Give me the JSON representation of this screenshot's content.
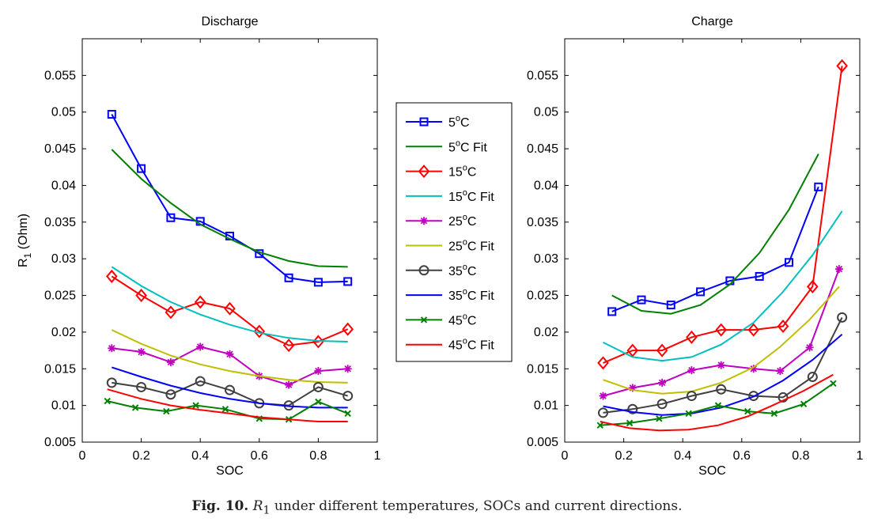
{
  "caption": {
    "label": "Fig. 10.",
    "symbol": "R",
    "subscript": "1",
    "text": " under different temperatures, SOCs and current directions."
  },
  "legend": {
    "position": "between-panels",
    "entries": [
      {
        "label": "5",
        "sup": "o",
        "unit": "C",
        "suffix": "",
        "color": "#0000ff",
        "marker": "square"
      },
      {
        "label": "5",
        "sup": "o",
        "unit": "C",
        "suffix": " Fit",
        "color": "#008000",
        "marker": "none"
      },
      {
        "label": "15",
        "sup": "o",
        "unit": "C",
        "suffix": "",
        "color": "#ff0000",
        "marker": "diamond"
      },
      {
        "label": "15",
        "sup": "o",
        "unit": "C",
        "suffix": " Fit",
        "color": "#00bfbf",
        "marker": "none"
      },
      {
        "label": "25",
        "sup": "o",
        "unit": "C",
        "suffix": "",
        "color": "#bf00bf",
        "marker": "star"
      },
      {
        "label": "25",
        "sup": "o",
        "unit": "C",
        "suffix": " Fit",
        "color": "#bfbf00",
        "marker": "none"
      },
      {
        "label": "35",
        "sup": "o",
        "unit": "C",
        "suffix": "",
        "color": "#404040",
        "marker": "circle"
      },
      {
        "label": "35",
        "sup": "o",
        "unit": "C",
        "suffix": " Fit",
        "color": "#0000ff",
        "marker": "none"
      },
      {
        "label": "45",
        "sup": "o",
        "unit": "C",
        "suffix": "",
        "color": "#008000",
        "marker": "x"
      },
      {
        "label": "45",
        "sup": "o",
        "unit": "C",
        "suffix": " Fit",
        "color": "#ff0000",
        "marker": "none"
      }
    ]
  },
  "chart_data": [
    {
      "type": "line",
      "title": "Discharge",
      "xlabel": "SOC",
      "ylabel": "R",
      "ylabel_sub": "1",
      "ylabel_unit": " (Ohm)",
      "xlim": [
        0,
        1
      ],
      "ylim": [
        0.005,
        0.06
      ],
      "xticks": [
        "0",
        "0.2",
        "0.4",
        "0.6",
        "0.8",
        "1"
      ],
      "yticks": [
        "0.005",
        "0.01",
        "0.015",
        "0.02",
        "0.025",
        "0.03",
        "0.035",
        "0.04",
        "0.045",
        "0.05",
        "0.055"
      ],
      "series": [
        {
          "name": "5oC",
          "color": "#0000ff",
          "marker": "square",
          "x": [
            0.1,
            0.2,
            0.3,
            0.4,
            0.5,
            0.6,
            0.7,
            0.8,
            0.9
          ],
          "y": [
            0.0497,
            0.0423,
            0.0356,
            0.0351,
            0.0331,
            0.0307,
            0.0274,
            0.0268,
            0.0269
          ]
        },
        {
          "name": "5oC Fit",
          "color": "#008000",
          "marker": "none",
          "x": [
            0.1,
            0.2,
            0.3,
            0.4,
            0.5,
            0.6,
            0.7,
            0.8,
            0.9
          ],
          "y": [
            0.0449,
            0.0409,
            0.0376,
            0.0347,
            0.0327,
            0.0309,
            0.0297,
            0.029,
            0.0289
          ]
        },
        {
          "name": "15oC",
          "color": "#ff0000",
          "marker": "diamond",
          "x": [
            0.1,
            0.2,
            0.3,
            0.4,
            0.5,
            0.6,
            0.7,
            0.8,
            0.9
          ],
          "y": [
            0.0276,
            0.025,
            0.0227,
            0.0241,
            0.0232,
            0.0201,
            0.0182,
            0.0187,
            0.0204
          ]
        },
        {
          "name": "15oC Fit",
          "color": "#00bfbf",
          "marker": "none",
          "x": [
            0.1,
            0.2,
            0.3,
            0.4,
            0.5,
            0.6,
            0.7,
            0.8,
            0.9
          ],
          "y": [
            0.0289,
            0.0263,
            0.0241,
            0.0224,
            0.021,
            0.0199,
            0.0192,
            0.0188,
            0.0187
          ]
        },
        {
          "name": "25oC",
          "color": "#bf00bf",
          "marker": "star",
          "x": [
            0.1,
            0.2,
            0.3,
            0.4,
            0.5,
            0.6,
            0.7,
            0.8,
            0.9
          ],
          "y": [
            0.0178,
            0.0173,
            0.0159,
            0.018,
            0.017,
            0.014,
            0.0128,
            0.0147,
            0.015
          ]
        },
        {
          "name": "25oC Fit",
          "color": "#bfbf00",
          "marker": "none",
          "x": [
            0.1,
            0.2,
            0.3,
            0.4,
            0.5,
            0.6,
            0.7,
            0.8,
            0.9
          ],
          "y": [
            0.0203,
            0.0184,
            0.0168,
            0.0156,
            0.0147,
            0.014,
            0.0135,
            0.0132,
            0.0131
          ]
        },
        {
          "name": "35oC",
          "color": "#404040",
          "marker": "circle",
          "x": [
            0.1,
            0.2,
            0.3,
            0.4,
            0.5,
            0.6,
            0.7,
            0.8,
            0.9
          ],
          "y": [
            0.0131,
            0.0125,
            0.0115,
            0.0133,
            0.0121,
            0.0103,
            0.01,
            0.0125,
            0.0113
          ]
        },
        {
          "name": "35oC Fit",
          "color": "#0000ff",
          "marker": "none",
          "x": [
            0.1,
            0.2,
            0.3,
            0.4,
            0.5,
            0.6,
            0.7,
            0.8,
            0.9
          ],
          "y": [
            0.0152,
            0.0139,
            0.0127,
            0.0117,
            0.0109,
            0.0103,
            0.0099,
            0.0097,
            0.0097
          ]
        },
        {
          "name": "45oC",
          "color": "#008000",
          "marker": "x",
          "x": [
            0.085,
            0.18,
            0.285,
            0.385,
            0.485,
            0.6,
            0.7,
            0.8,
            0.9
          ],
          "y": [
            0.0106,
            0.0097,
            0.0092,
            0.01,
            0.0095,
            0.0082,
            0.0081,
            0.0105,
            0.0089
          ]
        },
        {
          "name": "45oC Fit",
          "color": "#ff0000",
          "marker": "none",
          "x": [
            0.085,
            0.2,
            0.3,
            0.4,
            0.5,
            0.6,
            0.7,
            0.8,
            0.9
          ],
          "y": [
            0.0122,
            0.0109,
            0.01,
            0.0094,
            0.0089,
            0.0084,
            0.0081,
            0.0078,
            0.0078
          ]
        }
      ]
    },
    {
      "type": "line",
      "title": "Charge",
      "xlabel": "SOC",
      "ylabel": "",
      "xlim": [
        0,
        1
      ],
      "ylim": [
        0.005,
        0.06
      ],
      "xticks": [
        "0",
        "0.2",
        "0.4",
        "0.6",
        "0.8",
        "1"
      ],
      "yticks": [
        "0.005",
        "0.01",
        "0.015",
        "0.02",
        "0.025",
        "0.03",
        "0.035",
        "0.04",
        "0.045",
        "0.05",
        "0.055"
      ],
      "series": [
        {
          "name": "5oC",
          "color": "#0000ff",
          "marker": "square",
          "x": [
            0.16,
            0.26,
            0.36,
            0.46,
            0.56,
            0.66,
            0.76,
            0.86
          ],
          "y": [
            0.0228,
            0.0244,
            0.0237,
            0.0255,
            0.027,
            0.0276,
            0.0295,
            0.0398
          ]
        },
        {
          "name": "5oC Fit",
          "color": "#008000",
          "marker": "none",
          "x": [
            0.16,
            0.26,
            0.36,
            0.46,
            0.56,
            0.66,
            0.76,
            0.86
          ],
          "y": [
            0.025,
            0.0229,
            0.0225,
            0.0237,
            0.0265,
            0.0308,
            0.0367,
            0.0443
          ]
        },
        {
          "name": "15oC",
          "color": "#ff0000",
          "marker": "diamond",
          "x": [
            0.13,
            0.23,
            0.33,
            0.43,
            0.53,
            0.64,
            0.74,
            0.84,
            0.94
          ],
          "y": [
            0.0158,
            0.0175,
            0.0175,
            0.0193,
            0.0203,
            0.0203,
            0.0208,
            0.0262,
            0.0563
          ]
        },
        {
          "name": "15oC Fit",
          "color": "#00bfbf",
          "marker": "none",
          "x": [
            0.13,
            0.23,
            0.33,
            0.43,
            0.53,
            0.64,
            0.74,
            0.84,
            0.94
          ],
          "y": [
            0.0186,
            0.0166,
            0.0161,
            0.0166,
            0.0183,
            0.0213,
            0.0255,
            0.0305,
            0.0365
          ]
        },
        {
          "name": "25oC",
          "color": "#bf00bf",
          "marker": "star",
          "x": [
            0.13,
            0.23,
            0.33,
            0.43,
            0.53,
            0.64,
            0.73,
            0.83,
            0.93
          ],
          "y": [
            0.0113,
            0.0124,
            0.0131,
            0.0148,
            0.0155,
            0.015,
            0.0147,
            0.0179,
            0.0286
          ]
        },
        {
          "name": "25oC Fit",
          "color": "#bfbf00",
          "marker": "none",
          "x": [
            0.13,
            0.23,
            0.33,
            0.43,
            0.53,
            0.64,
            0.73,
            0.83,
            0.93
          ],
          "y": [
            0.0135,
            0.0121,
            0.0116,
            0.0119,
            0.0131,
            0.0152,
            0.018,
            0.0217,
            0.0262
          ]
        },
        {
          "name": "35oC",
          "color": "#404040",
          "marker": "circle",
          "x": [
            0.13,
            0.23,
            0.33,
            0.43,
            0.53,
            0.64,
            0.74,
            0.84,
            0.94
          ],
          "y": [
            0.009,
            0.0095,
            0.0102,
            0.0113,
            0.0122,
            0.0113,
            0.0111,
            0.0139,
            0.022
          ]
        },
        {
          "name": "35oC Fit",
          "color": "#0000ff",
          "marker": "none",
          "x": [
            0.13,
            0.23,
            0.33,
            0.43,
            0.53,
            0.64,
            0.74,
            0.84,
            0.94
          ],
          "y": [
            0.0099,
            0.0091,
            0.0087,
            0.0089,
            0.0097,
            0.0112,
            0.0134,
            0.0162,
            0.0197
          ]
        },
        {
          "name": "45oC",
          "color": "#008000",
          "marker": "x",
          "x": [
            0.12,
            0.22,
            0.32,
            0.42,
            0.52,
            0.62,
            0.71,
            0.81,
            0.91
          ],
          "y": [
            0.0073,
            0.0076,
            0.0082,
            0.0089,
            0.01,
            0.0092,
            0.0089,
            0.0102,
            0.013
          ]
        },
        {
          "name": "45oC Fit",
          "color": "#ff0000",
          "marker": "none",
          "x": [
            0.12,
            0.22,
            0.32,
            0.42,
            0.52,
            0.62,
            0.71,
            0.81,
            0.91
          ],
          "y": [
            0.0078,
            0.0069,
            0.0066,
            0.0067,
            0.0073,
            0.0085,
            0.0101,
            0.012,
            0.0142
          ]
        }
      ]
    }
  ]
}
